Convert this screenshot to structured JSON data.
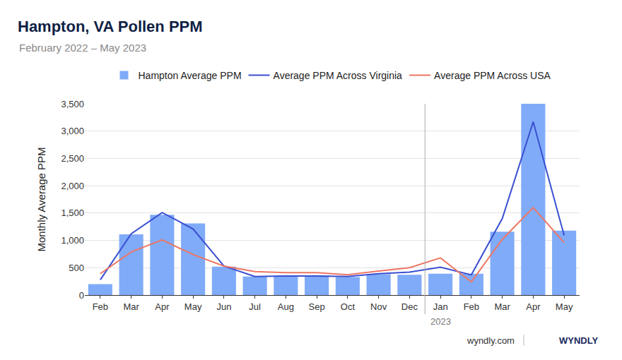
{
  "chart_data": {
    "type": "bar",
    "title": "Hampton, VA Pollen PPM",
    "subtitle": "February 2022 – May 2023",
    "y_label": "Monthly Average PPM",
    "categories": [
      "Feb",
      "Mar",
      "Apr",
      "May",
      "Jun",
      "Jul",
      "Aug",
      "Sep",
      "Oct",
      "Nov",
      "Dec",
      "Jan",
      "Feb",
      "Mar",
      "Apr",
      "May"
    ],
    "x_sublabels": [
      null,
      null,
      null,
      null,
      null,
      null,
      null,
      null,
      null,
      null,
      null,
      "2023",
      null,
      null,
      null,
      null
    ],
    "series": [
      {
        "name": "Hampton Average PPM",
        "type": "bar",
        "color": "#80abf8",
        "values": [
          200,
          1110,
          1470,
          1310,
          520,
          340,
          360,
          360,
          330,
          380,
          370,
          390,
          390,
          1160,
          3500,
          1180
        ]
      },
      {
        "name": "Average PPM Across Virginia",
        "type": "line",
        "color": "#3a4fd1",
        "values": [
          280,
          1120,
          1510,
          1210,
          530,
          340,
          350,
          350,
          340,
          390,
          420,
          510,
          370,
          1400,
          3170,
          1090
        ]
      },
      {
        "name": "Average PPM Across USA",
        "type": "line",
        "color": "#ee7664",
        "values": [
          390,
          790,
          1010,
          740,
          530,
          430,
          410,
          410,
          370,
          440,
          500,
          680,
          240,
          1020,
          1600,
          960
        ]
      }
    ],
    "ylim": [
      0,
      3500
    ],
    "yticks": [
      0,
      500,
      {
        "value": 1000,
        "label": "1,000"
      },
      {
        "value": 1500,
        "label": "1,500"
      },
      {
        "value": 2000,
        "label": "2,000"
      },
      {
        "value": 2500,
        "label": "2,500"
      },
      {
        "value": 3000,
        "label": "3,000"
      },
      {
        "value": 3500,
        "label": "3,500"
      }
    ],
    "grid": true,
    "legend": "top",
    "footer": [
      "wyndly.com",
      "WYNDLY"
    ]
  }
}
